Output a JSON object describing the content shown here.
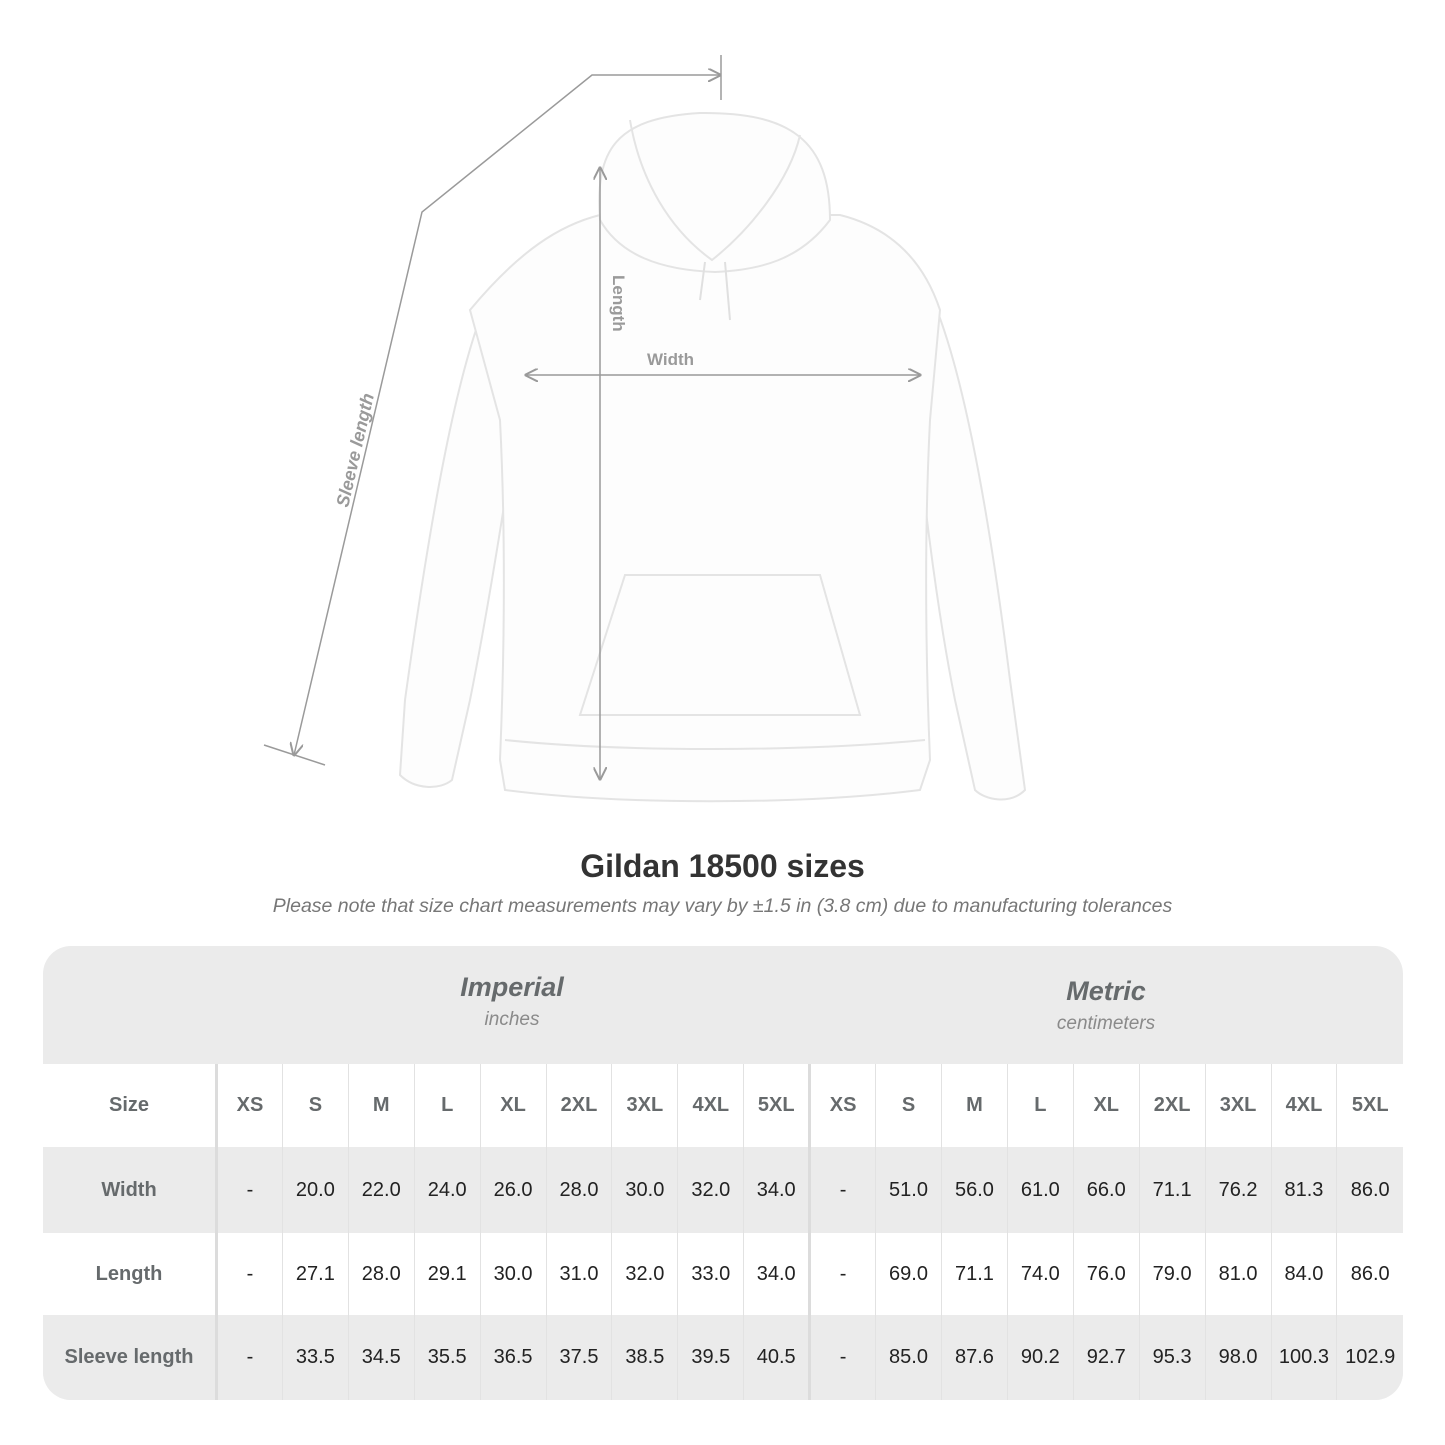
{
  "figure": {
    "labels": {
      "sleeve": "Sleeve length",
      "length": "Length",
      "width": "Width"
    },
    "measure_color": "#9a9a9a"
  },
  "title": "Gildan 18500 sizes",
  "note": "Please note that size chart measurements may vary by ±1.5 in (3.8 cm) due to manufacturing tolerances",
  "table": {
    "imperial": {
      "name": "Imperial",
      "unit": "inches"
    },
    "metric": {
      "name": "Metric",
      "unit": "centimeters"
    },
    "size_label": "Size",
    "sizes": [
      "XS",
      "S",
      "M",
      "L",
      "XL",
      "2XL",
      "3XL",
      "4XL",
      "5XL"
    ],
    "rows": [
      {
        "label": "Width",
        "imperial": [
          "-",
          "20.0",
          "22.0",
          "24.0",
          "26.0",
          "28.0",
          "30.0",
          "32.0",
          "34.0"
        ],
        "metric": [
          "-",
          "51.0",
          "56.0",
          "61.0",
          "66.0",
          "71.1",
          "76.2",
          "81.3",
          "86.0"
        ]
      },
      {
        "label": "Length",
        "imperial": [
          "-",
          "27.1",
          "28.0",
          "29.1",
          "30.0",
          "31.0",
          "32.0",
          "33.0",
          "34.0"
        ],
        "metric": [
          "-",
          "69.0",
          "71.1",
          "74.0",
          "76.0",
          "79.0",
          "81.0",
          "84.0",
          "86.0"
        ]
      },
      {
        "label": "Sleeve length",
        "imperial": [
          "-",
          "33.5",
          "34.5",
          "35.5",
          "36.5",
          "37.5",
          "38.5",
          "39.5",
          "40.5"
        ],
        "metric": [
          "-",
          "85.0",
          "87.6",
          "90.2",
          "92.7",
          "95.3",
          "98.0",
          "100.3",
          "102.9"
        ]
      }
    ]
  }
}
